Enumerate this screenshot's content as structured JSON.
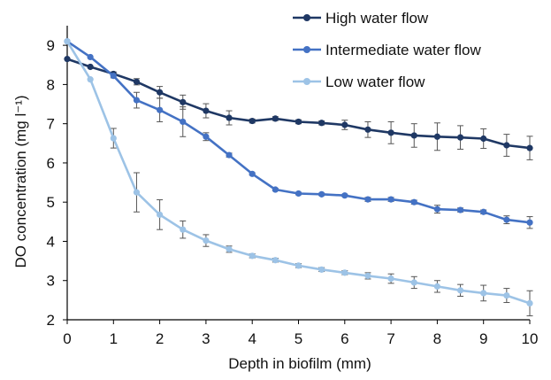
{
  "chart_data": {
    "type": "line",
    "xlabel": "Depth in biofilm (mm)",
    "ylabel": "DO concentration (mg l⁻¹)",
    "xlim": [
      0,
      10
    ],
    "ylim": [
      2,
      9.5
    ],
    "xticks": [
      0,
      1,
      2,
      3,
      4,
      5,
      6,
      7,
      8,
      9,
      10
    ],
    "yticks": [
      2,
      3,
      4,
      5,
      6,
      7,
      8,
      9
    ],
    "grid": false,
    "legend_position": "top-right",
    "x": [
      0,
      0.5,
      1,
      1.5,
      2,
      2.5,
      3,
      3.5,
      4,
      4.5,
      5,
      5.5,
      6,
      6.5,
      7,
      7.5,
      8,
      8.5,
      9,
      9.5,
      10
    ],
    "series": [
      {
        "name": "High water flow",
        "color": "#1f3864",
        "values": [
          8.65,
          8.45,
          8.27,
          8.07,
          7.8,
          7.55,
          7.33,
          7.15,
          7.07,
          7.13,
          7.05,
          7.02,
          6.97,
          6.85,
          6.77,
          6.7,
          6.67,
          6.65,
          6.62,
          6.45,
          6.38
        ],
        "errors": [
          0,
          0,
          0.05,
          0.08,
          0.15,
          0.18,
          0.18,
          0.18,
          0.05,
          0.05,
          0.05,
          0.05,
          0.12,
          0.2,
          0.28,
          0.3,
          0.35,
          0.3,
          0.25,
          0.28,
          0.3
        ]
      },
      {
        "name": "Intermediate water flow",
        "color": "#4472c4",
        "values": [
          9.1,
          8.7,
          8.22,
          7.6,
          7.35,
          7.05,
          6.67,
          6.2,
          5.72,
          5.32,
          5.22,
          5.2,
          5.17,
          5.07,
          5.07,
          5.0,
          4.82,
          4.8,
          4.75,
          4.55,
          4.48
        ],
        "errors": [
          0,
          0,
          0.05,
          0.2,
          0.3,
          0.38,
          0.1,
          0.05,
          0.03,
          0.03,
          0.03,
          0.03,
          0.03,
          0.05,
          0.05,
          0.05,
          0.1,
          0.05,
          0.05,
          0.1,
          0.15
        ]
      },
      {
        "name": "Low water flow",
        "color": "#9dc3e6",
        "values": [
          9.1,
          8.13,
          6.63,
          5.25,
          4.68,
          4.3,
          4.02,
          3.8,
          3.63,
          3.52,
          3.38,
          3.28,
          3.2,
          3.12,
          3.05,
          2.95,
          2.85,
          2.75,
          2.68,
          2.62,
          2.42
        ],
        "errors": [
          0,
          0,
          0.25,
          0.5,
          0.38,
          0.22,
          0.15,
          0.08,
          0.05,
          0.05,
          0.05,
          0.05,
          0.05,
          0.08,
          0.12,
          0.15,
          0.15,
          0.15,
          0.2,
          0.18,
          0.32
        ]
      }
    ]
  }
}
